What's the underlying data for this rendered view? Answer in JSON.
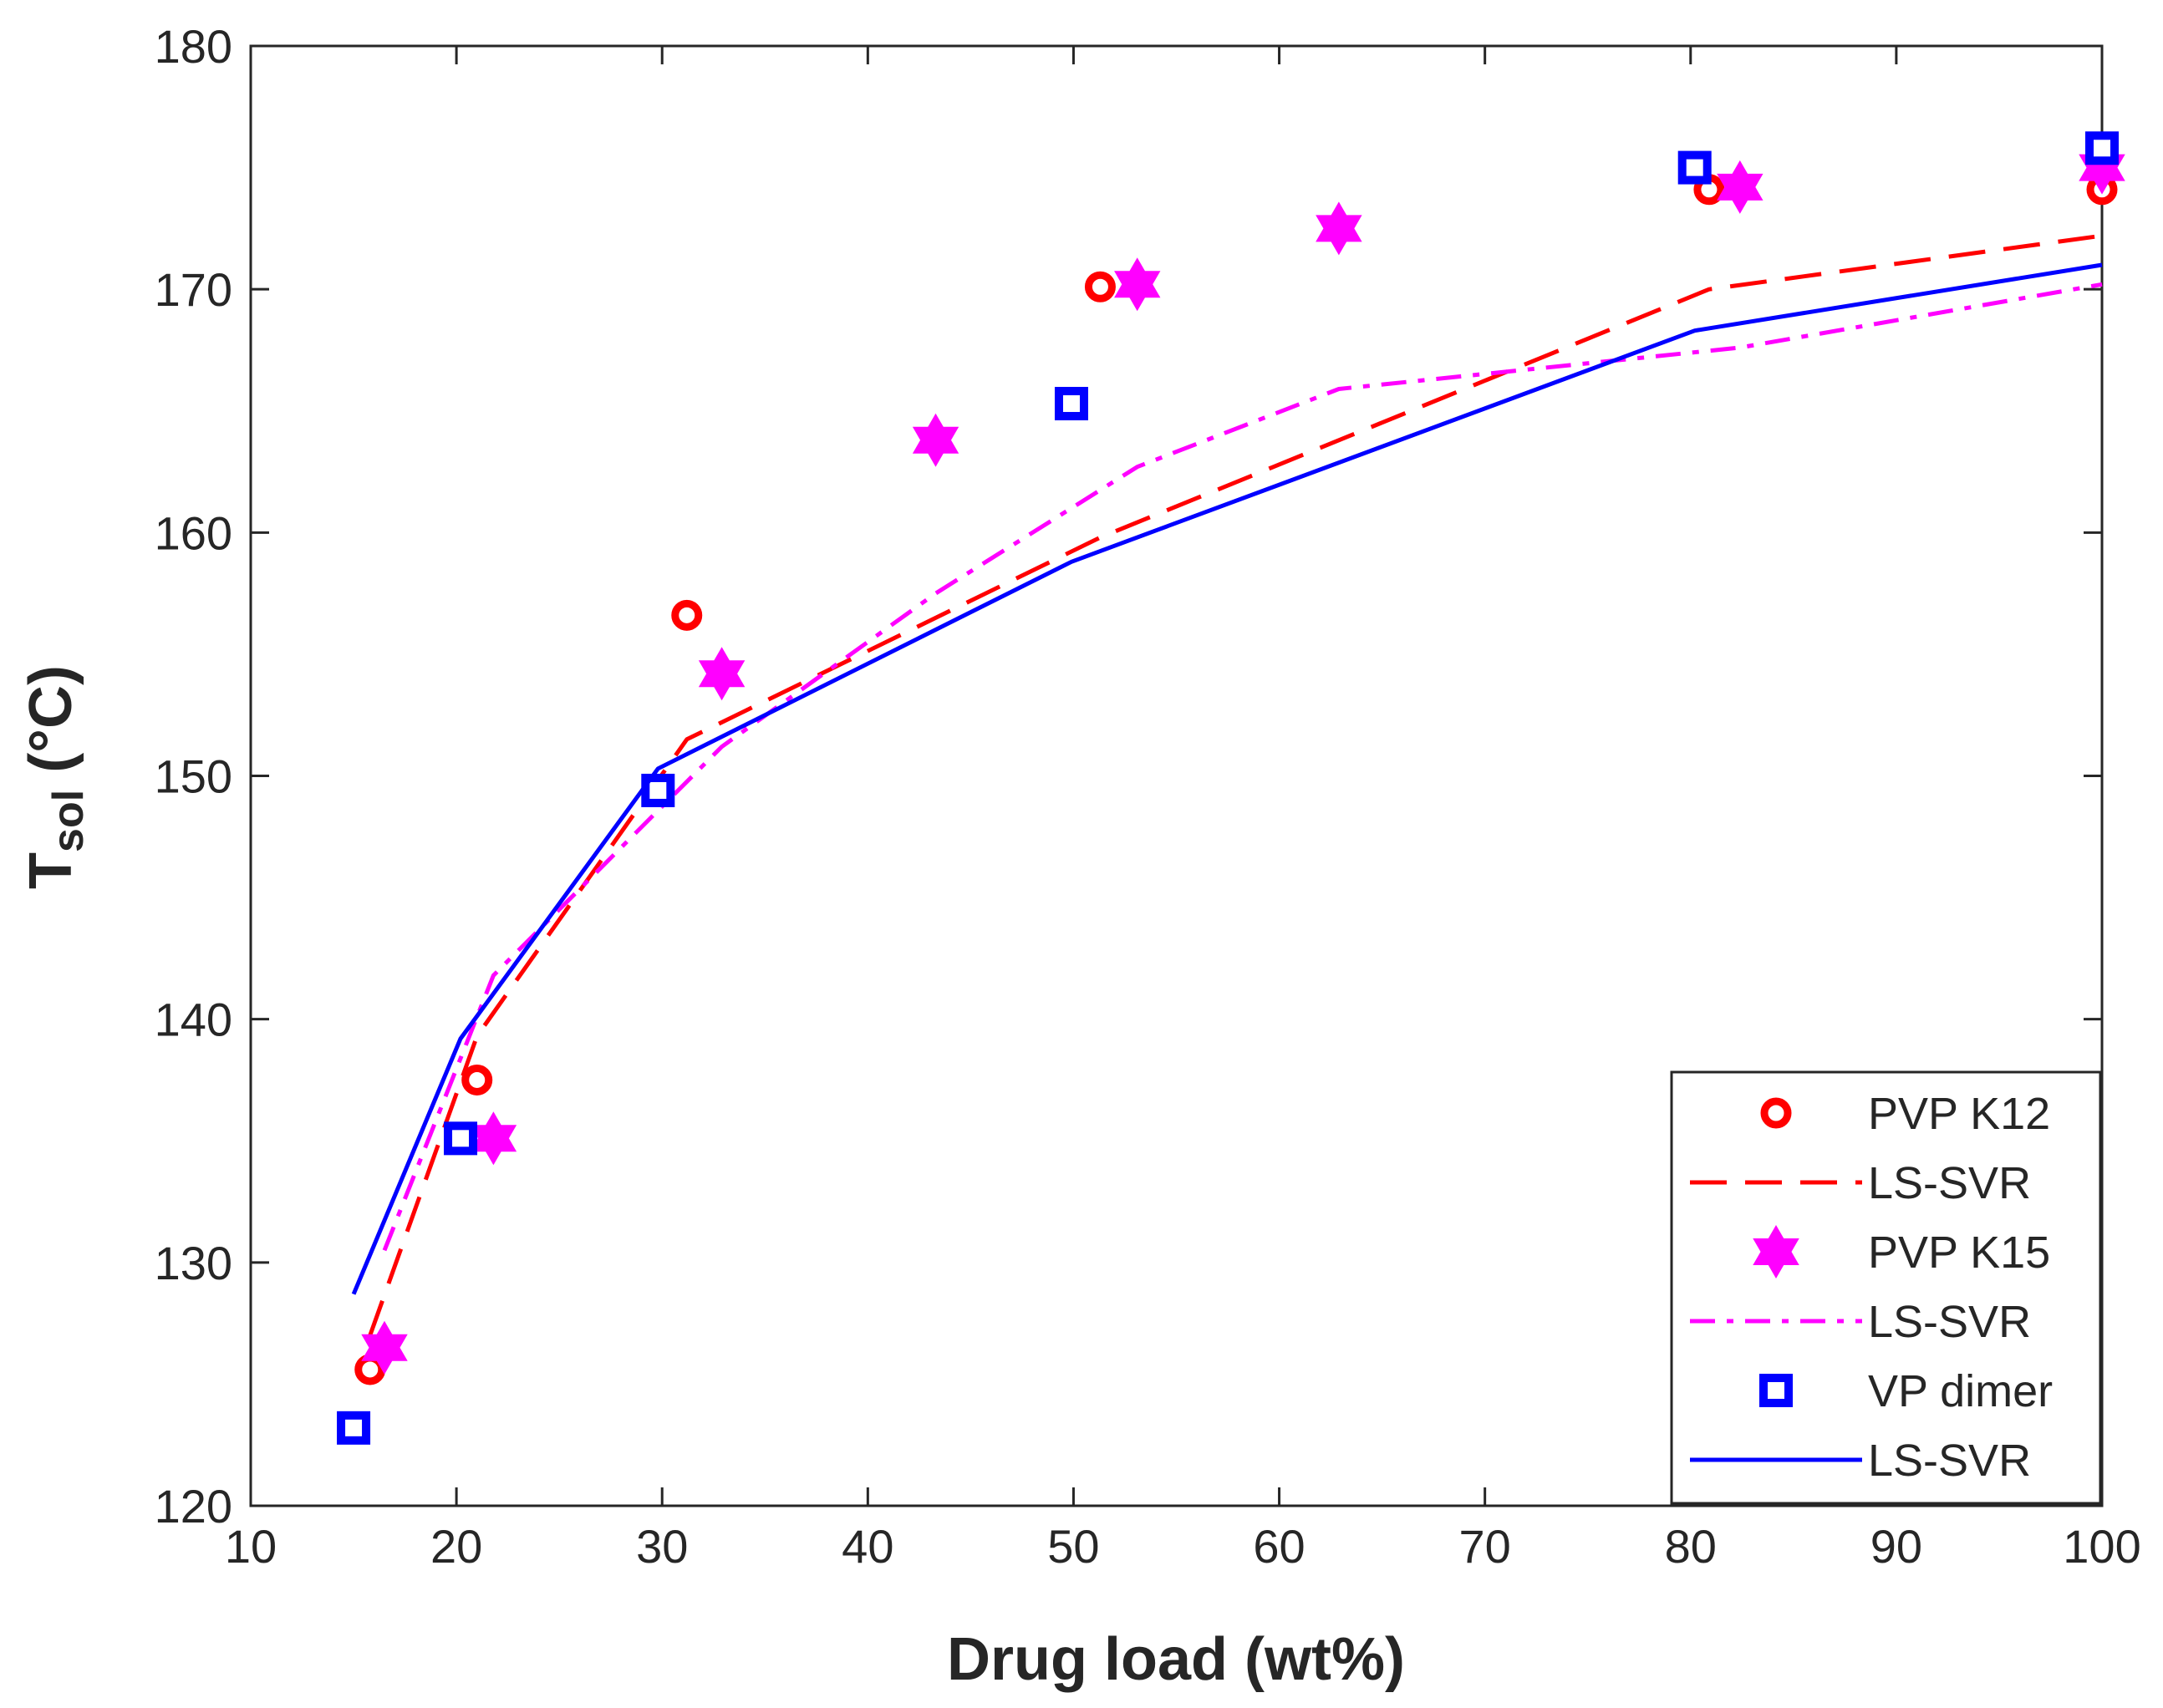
{
  "chart_data": {
    "type": "line",
    "xlabel": "Drug load (wt%)",
    "ylabel_main": "T",
    "ylabel_sub": "sol",
    "ylabel_unit": " (°C)",
    "xlim": [
      10,
      100
    ],
    "ylim": [
      120,
      180
    ],
    "xticks": [
      10,
      20,
      30,
      40,
      50,
      60,
      70,
      80,
      90,
      100
    ],
    "yticks": [
      120,
      130,
      140,
      150,
      160,
      170,
      180
    ],
    "grid": false,
    "legend_position": "bottom-right",
    "series": [
      {
        "name": "PVP K12",
        "kind": "marker",
        "marker": "circle",
        "color": "#ff0000",
        "x": [
          15.8,
          21.0,
          31.2,
          51.3,
          80.9,
          100
        ],
        "y": [
          125.6,
          137.5,
          156.6,
          170.1,
          174.1,
          174.1
        ]
      },
      {
        "name": "LS-SVR",
        "kind": "line",
        "dash": "dashed",
        "color": "#ff0000",
        "x": [
          15.8,
          21.0,
          31.2,
          51.3,
          80.9,
          100
        ],
        "y": [
          127.0,
          139.3,
          151.5,
          159.8,
          170.0,
          172.2
        ]
      },
      {
        "name": "PVP K15",
        "kind": "marker",
        "marker": "hexagram",
        "color": "#ff00ff",
        "x": [
          16.5,
          21.8,
          32.9,
          43.3,
          53.1,
          62.9,
          82.4,
          100
        ],
        "y": [
          126.5,
          135.1,
          154.2,
          163.8,
          170.2,
          172.5,
          174.2,
          175.0
        ]
      },
      {
        "name": "LS-SVR",
        "kind": "line",
        "dash": "dashdot",
        "color": "#ff00ff",
        "x": [
          16.5,
          21.8,
          32.9,
          43.3,
          53.1,
          62.9,
          82.4,
          100
        ],
        "y": [
          130.5,
          141.8,
          151.2,
          157.5,
          162.7,
          165.9,
          167.6,
          170.2
        ]
      },
      {
        "name": "VP dimer",
        "kind": "marker",
        "marker": "square",
        "color": "#0000ff",
        "x": [
          15.0,
          20.2,
          29.8,
          49.9,
          80.2,
          100
        ],
        "y": [
          123.2,
          135.1,
          149.4,
          165.3,
          175.0,
          175.8
        ]
      },
      {
        "name": "LS-SVR",
        "kind": "line",
        "dash": "solid",
        "color": "#0000ff",
        "x": [
          15.0,
          20.2,
          29.8,
          49.9,
          80.2,
          100
        ],
        "y": [
          128.7,
          139.2,
          150.3,
          158.8,
          168.3,
          171.0
        ]
      }
    ]
  }
}
